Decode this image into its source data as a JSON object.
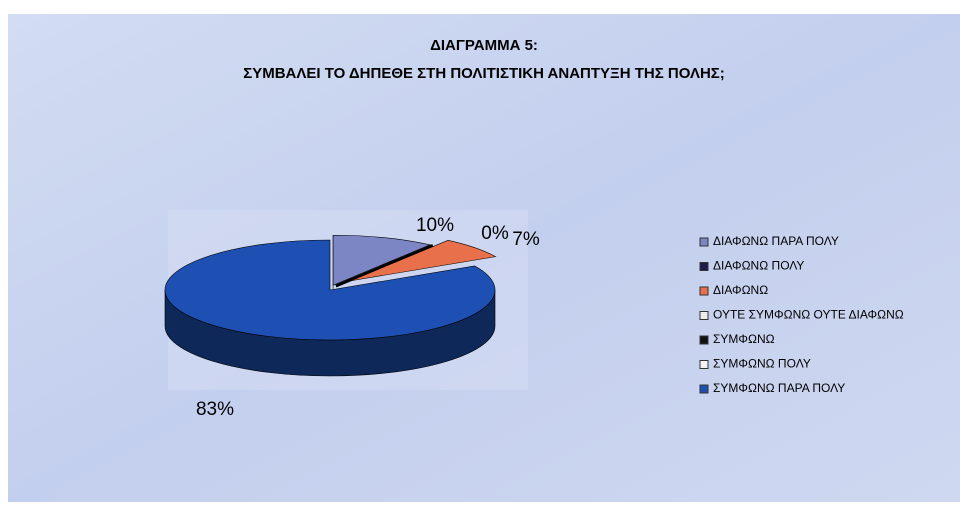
{
  "chart_data": {
    "type": "pie3d",
    "title": [
      "ΔΙΑΓΡΑΜΜΑ 5:",
      "ΣΥΜΒΑΛΕΙ ΤΟ ΔΗΠΕΘΕ ΣΤΗ ΠΟΛΙΤΙΣΤΙΚΗ ΑΝΑΠΤΥΞΗ ΤΗΣ ΠΟΛΗΣ;"
    ],
    "categories": [
      "ΔΙΑΦΩΝΩ ΠΑΡΑ ΠΟΛΥ",
      "ΔΙΑΦΩΝΩ ΠΟΛΥ",
      "ΔΙΑΦΩΝΩ",
      "ΟΥΤΕ ΣΥΜΦΩΝΩ ΟΥΤΕ ΔΙΑΦΩΝΩ",
      "ΣΥΜΦΩΝΩ",
      "ΣΥΜΦΩΝΩ ΠΟΛΥ",
      "ΣΥΜΦΩΝΩ ΠΑΡΑ ΠΟΛΥ"
    ],
    "values": [
      10,
      0,
      7,
      null,
      null,
      null,
      83
    ],
    "value_labels": [
      "10%",
      "0%",
      "7%",
      null,
      null,
      null,
      "83%"
    ],
    "colors": [
      "#7d86c4",
      "#1c1c4a",
      "#e8704a",
      "#eeeeee",
      "#111111",
      "#f4f4f4",
      "#1e50b4"
    ],
    "legend": "right"
  }
}
